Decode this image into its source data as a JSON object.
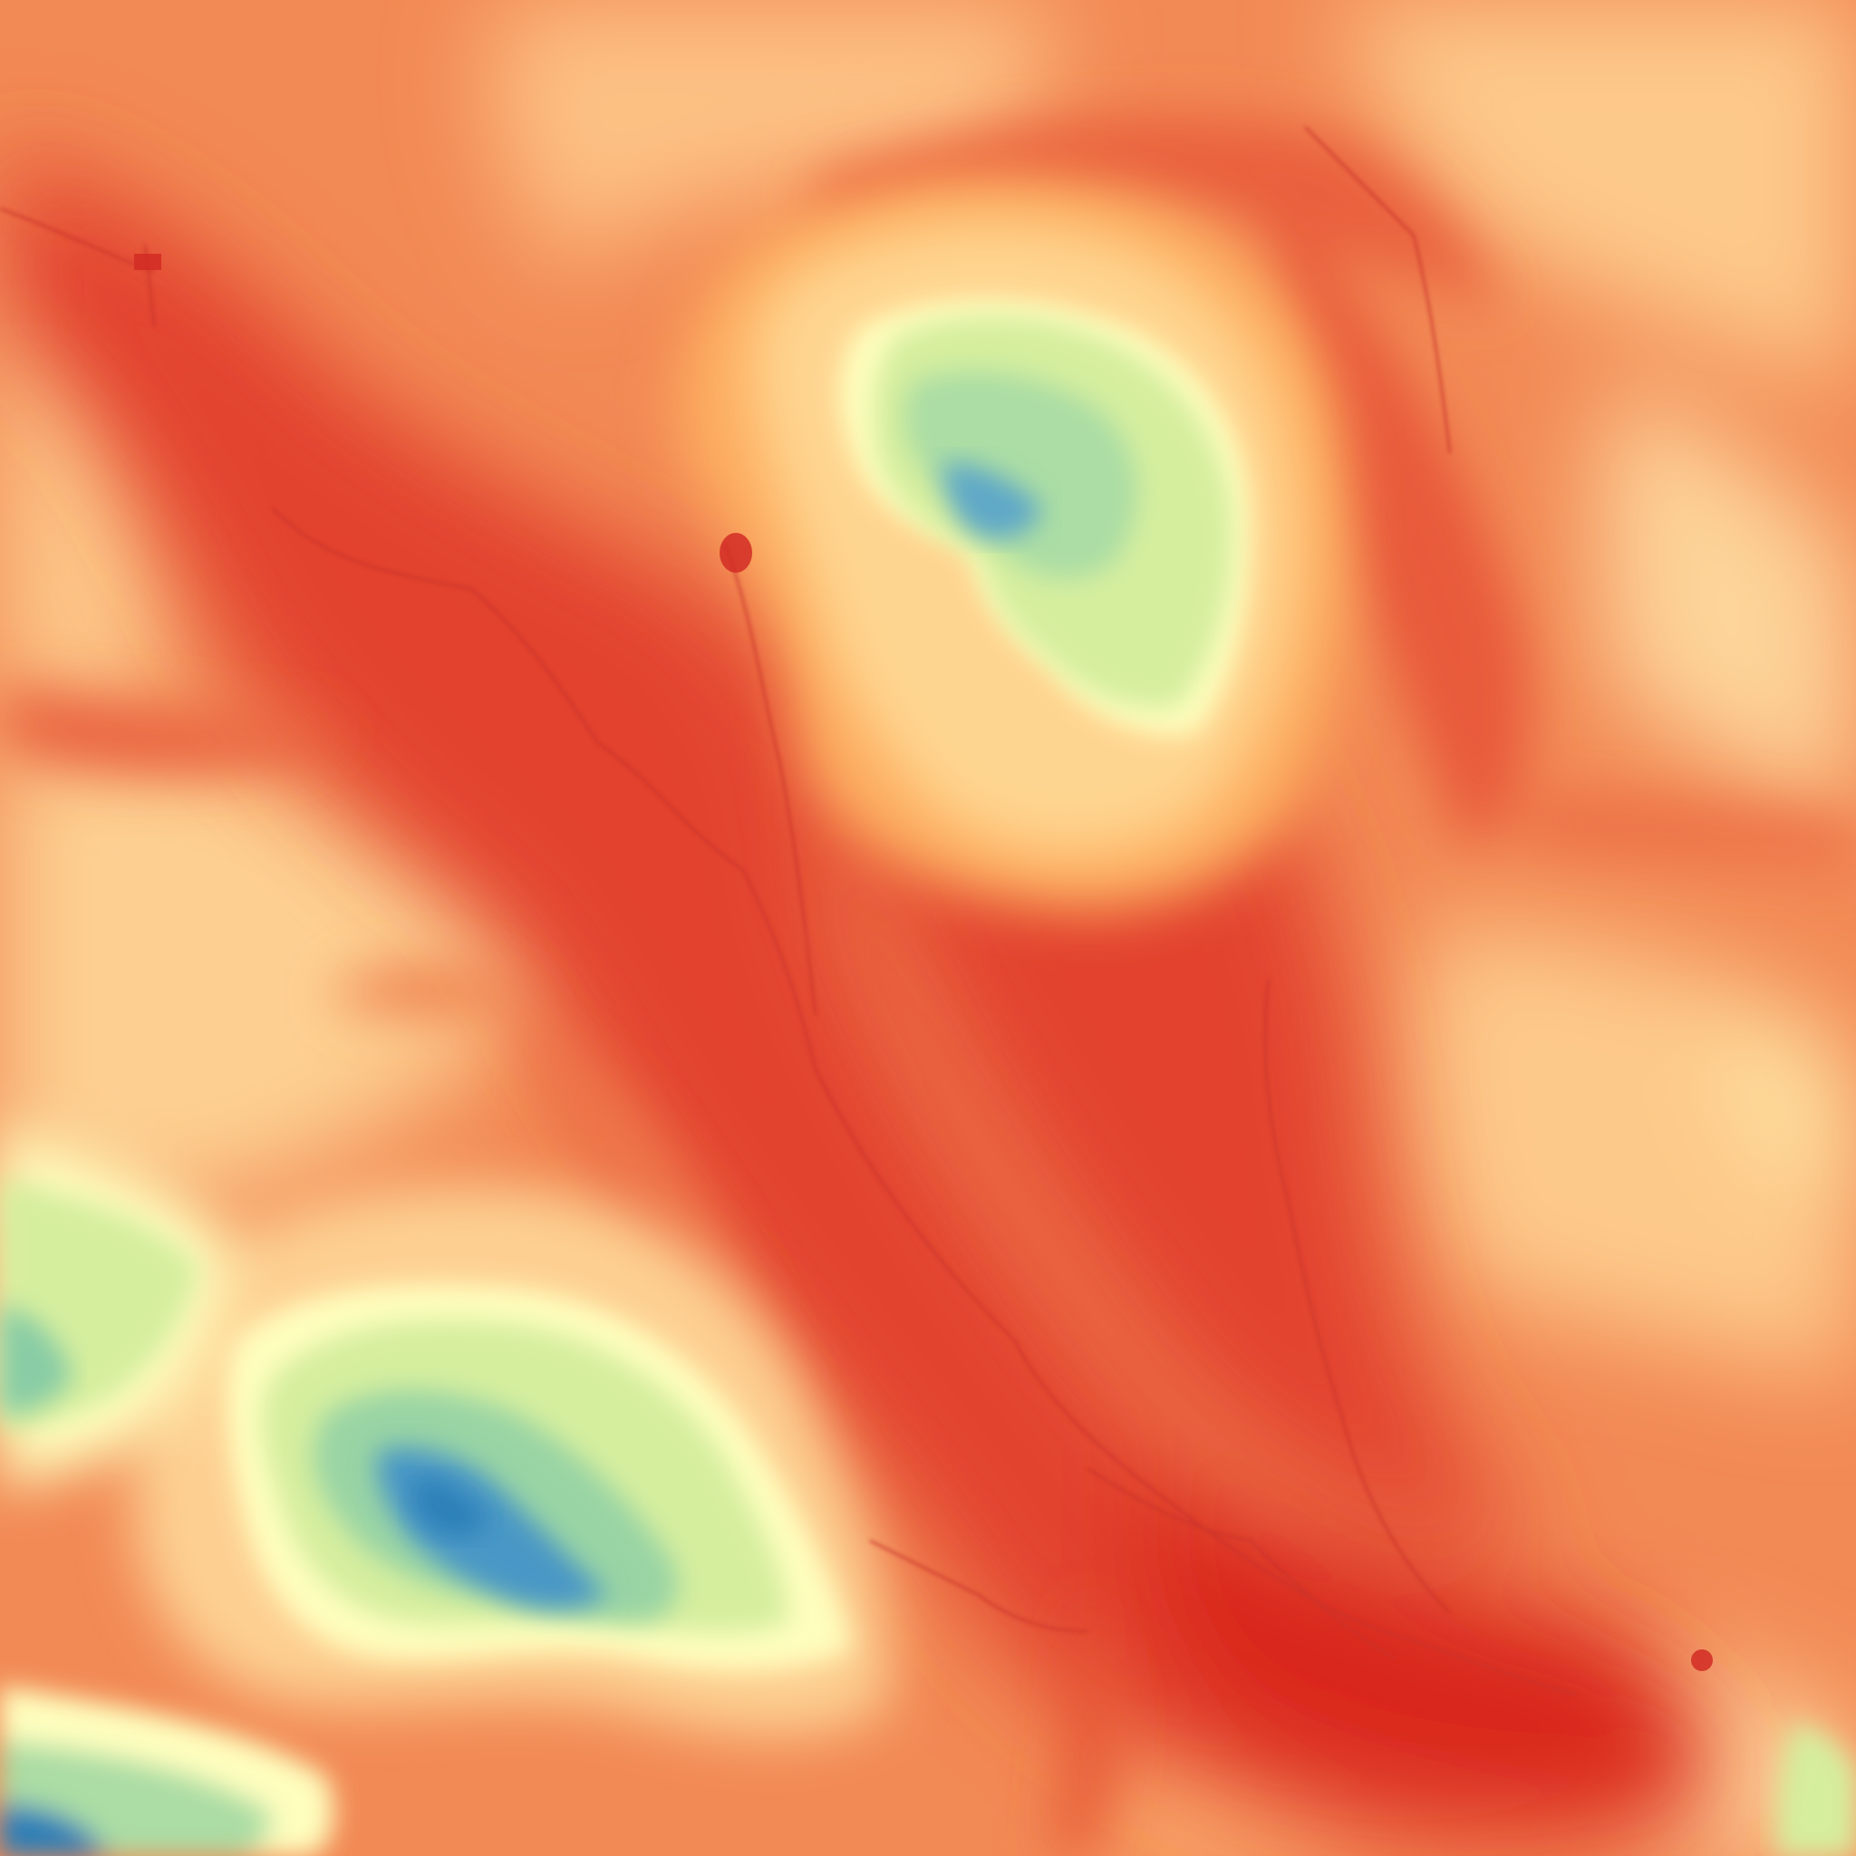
{
  "map": {
    "kind": "elevation-raster",
    "legend_visible": false,
    "colormap": {
      "name": "RdYlBu",
      "stops": [
        "#d7191c",
        "#e34a33",
        "#f07c4a",
        "#fdae61",
        "#fee08b",
        "#ffffbf",
        "#d9ef8b",
        "#abdda4",
        "#66c2a5",
        "#3288bd",
        "#2b83ba"
      ]
    },
    "features": [
      {
        "name": "central-valley-floor",
        "class": "low",
        "color": "#de3b2b"
      },
      {
        "name": "north-plateau-summit",
        "class": "high",
        "color": "#4d9ac7"
      },
      {
        "name": "southwest-massif-summit",
        "class": "highest",
        "color": "#2c7fb8"
      },
      {
        "name": "west-ridge",
        "class": "mid",
        "color": "#fde7a8"
      },
      {
        "name": "east-ridge",
        "class": "mid",
        "color": "#fdd49a"
      },
      {
        "name": "southeast-basin",
        "class": "lowest",
        "color": "#d7191c"
      },
      {
        "name": "stream-channels",
        "class": "drainage",
        "color": "#c9322a"
      }
    ]
  }
}
